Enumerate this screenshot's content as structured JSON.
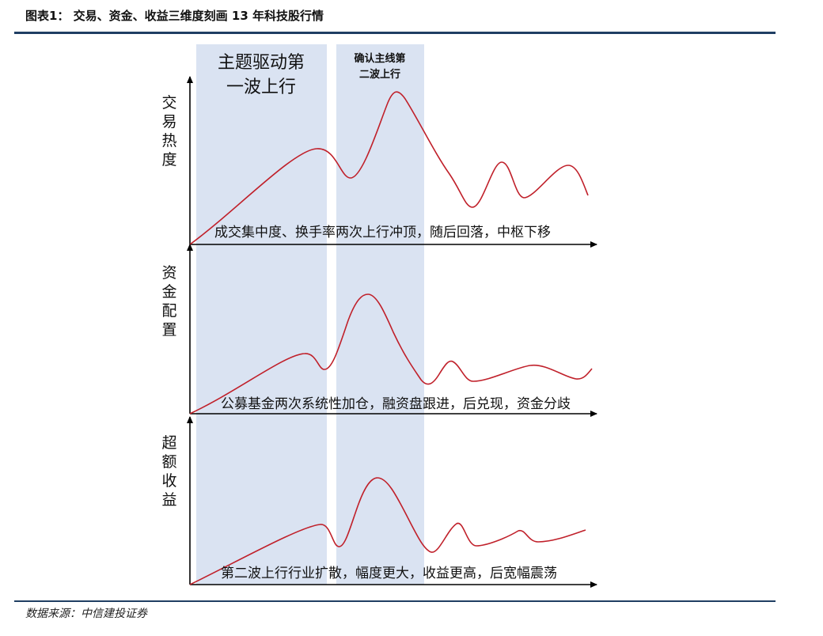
{
  "header": {
    "title": "图表1： 交易、资金、收益三维度刻画 13 年科技股行情"
  },
  "footer": {
    "source": "数据来源：中信建投证券"
  },
  "phases": [
    {
      "line1": "主题驱动第",
      "line2": "一波上行"
    },
    {
      "line1": "确认主线第",
      "line2": "二波上行"
    }
  ],
  "panels": [
    {
      "ylabel": [
        "交",
        "易",
        "热",
        "度"
      ],
      "caption": "成交集中度、换手率两次上行冲顶，随后回落，中枢下移"
    },
    {
      "ylabel": [
        "资",
        "金",
        "配",
        "置"
      ],
      "caption": "公募基金两次系统性加仓，融资盘跟进，后兑现，资金分歧"
    },
    {
      "ylabel": [
        "超",
        "额",
        "收",
        "益"
      ],
      "caption": "第二波上行行业扩散，幅度更大，收益更高，后宽幅震荡"
    }
  ],
  "colors": {
    "band": "#dae3f2",
    "curve": "#c0202a",
    "rule": "#1f3e63"
  }
}
